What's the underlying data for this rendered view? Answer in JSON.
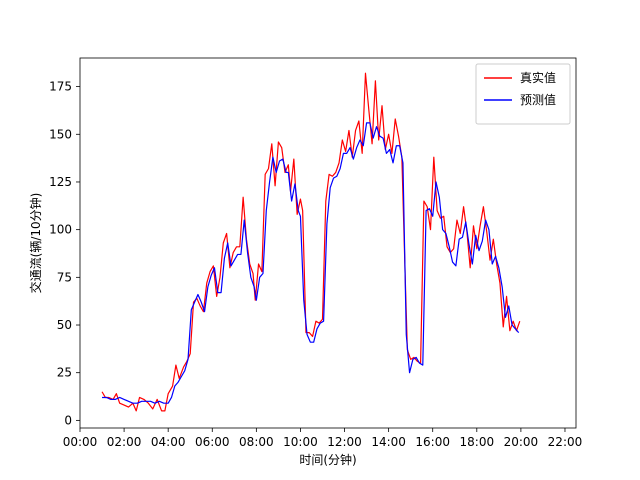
{
  "chart_data": {
    "type": "line",
    "title": "",
    "xlabel": "时间(分钟)",
    "ylabel": "交通流(辆/10分钟)",
    "xlim": [
      0,
      22.5
    ],
    "ylim": [
      -4,
      190
    ],
    "x_ticks": [
      0,
      2,
      4,
      6,
      8,
      10,
      12,
      14,
      16,
      18,
      20,
      22
    ],
    "x_tick_labels": [
      "00:00",
      "02:00",
      "04:00",
      "06:00",
      "08:00",
      "10:00",
      "12:00",
      "14:00",
      "16:00",
      "18:00",
      "20:00",
      "22:00"
    ],
    "y_ticks": [
      0,
      25,
      50,
      75,
      100,
      125,
      150,
      175
    ],
    "y_tick_labels": [
      "0",
      "25",
      "50",
      "75",
      "100",
      "125",
      "150",
      "175"
    ],
    "grid": false,
    "legend_position": "upper-right",
    "series": [
      {
        "name": "真实值",
        "color": "#ff0000",
        "points": [
          [
            1.0,
            15
          ],
          [
            1.15,
            12
          ],
          [
            1.3,
            12
          ],
          [
            1.5,
            11
          ],
          [
            1.65,
            14
          ],
          [
            1.8,
            9
          ],
          [
            2.0,
            8
          ],
          [
            2.2,
            7
          ],
          [
            2.4,
            9
          ],
          [
            2.55,
            5
          ],
          [
            2.7,
            12
          ],
          [
            2.9,
            11
          ],
          [
            3.1,
            9
          ],
          [
            3.3,
            6
          ],
          [
            3.5,
            11
          ],
          [
            3.7,
            5
          ],
          [
            3.85,
            5
          ],
          [
            4.0,
            14
          ],
          [
            4.2,
            18
          ],
          [
            4.35,
            29
          ],
          [
            4.5,
            22
          ],
          [
            4.7,
            28
          ],
          [
            4.85,
            31
          ],
          [
            5.0,
            35
          ],
          [
            5.15,
            62
          ],
          [
            5.3,
            64
          ],
          [
            5.45,
            60
          ],
          [
            5.6,
            57
          ],
          [
            5.75,
            72
          ],
          [
            5.9,
            78
          ],
          [
            6.05,
            81
          ],
          [
            6.2,
            65
          ],
          [
            6.35,
            75
          ],
          [
            6.5,
            93
          ],
          [
            6.65,
            98
          ],
          [
            6.8,
            80
          ],
          [
            6.95,
            88
          ],
          [
            7.1,
            91
          ],
          [
            7.25,
            91
          ],
          [
            7.4,
            117
          ],
          [
            7.55,
            95
          ],
          [
            7.7,
            82
          ],
          [
            7.85,
            77
          ],
          [
            7.95,
            63
          ],
          [
            8.1,
            82
          ],
          [
            8.25,
            78
          ],
          [
            8.4,
            129
          ],
          [
            8.55,
            132
          ],
          [
            8.7,
            145
          ],
          [
            8.85,
            123
          ],
          [
            9.0,
            146
          ],
          [
            9.15,
            143
          ],
          [
            9.3,
            130
          ],
          [
            9.45,
            134
          ],
          [
            9.55,
            120
          ],
          [
            9.7,
            137
          ],
          [
            9.85,
            108
          ],
          [
            10.0,
            116
          ],
          [
            10.1,
            110
          ],
          [
            10.25,
            46
          ],
          [
            10.4,
            46
          ],
          [
            10.55,
            44
          ],
          [
            10.7,
            52
          ],
          [
            10.85,
            51
          ],
          [
            11.0,
            53
          ],
          [
            11.15,
            115
          ],
          [
            11.3,
            129
          ],
          [
            11.45,
            128
          ],
          [
            11.6,
            130
          ],
          [
            11.75,
            135
          ],
          [
            11.9,
            147
          ],
          [
            12.05,
            141
          ],
          [
            12.2,
            152
          ],
          [
            12.35,
            138
          ],
          [
            12.5,
            152
          ],
          [
            12.65,
            157
          ],
          [
            12.8,
            140
          ],
          [
            12.95,
            182
          ],
          [
            13.1,
            163
          ],
          [
            13.25,
            145
          ],
          [
            13.4,
            178
          ],
          [
            13.55,
            147
          ],
          [
            13.7,
            165
          ],
          [
            13.85,
            142
          ],
          [
            14.0,
            150
          ],
          [
            14.15,
            140
          ],
          [
            14.3,
            158
          ],
          [
            14.45,
            149
          ],
          [
            14.6,
            138
          ],
          [
            14.75,
            76
          ],
          [
            14.85,
            37
          ],
          [
            15.0,
            32
          ],
          [
            15.15,
            33
          ],
          [
            15.3,
            31
          ],
          [
            15.45,
            30
          ],
          [
            15.6,
            115
          ],
          [
            15.75,
            112
          ],
          [
            15.9,
            100
          ],
          [
            16.05,
            138
          ],
          [
            16.2,
            110
          ],
          [
            16.35,
            106
          ],
          [
            16.5,
            107
          ],
          [
            16.65,
            91
          ],
          [
            16.8,
            88
          ],
          [
            16.95,
            90
          ],
          [
            17.1,
            105
          ],
          [
            17.25,
            98
          ],
          [
            17.4,
            112
          ],
          [
            17.55,
            99
          ],
          [
            17.7,
            80
          ],
          [
            17.85,
            102
          ],
          [
            18.0,
            90
          ],
          [
            18.15,
            102
          ],
          [
            18.3,
            112
          ],
          [
            18.45,
            99
          ],
          [
            18.6,
            84
          ],
          [
            18.75,
            95
          ],
          [
            18.9,
            82
          ],
          [
            19.05,
            72
          ],
          [
            19.2,
            49
          ],
          [
            19.35,
            65
          ],
          [
            19.5,
            47
          ],
          [
            19.65,
            52
          ],
          [
            19.8,
            47
          ],
          [
            19.95,
            52
          ]
        ]
      },
      {
        "name": "预测值",
        "color": "#0000ff",
        "points": [
          [
            1.0,
            12
          ],
          [
            1.2,
            12
          ],
          [
            1.4,
            11
          ],
          [
            1.6,
            11
          ],
          [
            1.8,
            12
          ],
          [
            2.0,
            11
          ],
          [
            2.2,
            10
          ],
          [
            2.4,
            9
          ],
          [
            2.6,
            9
          ],
          [
            2.8,
            10
          ],
          [
            3.0,
            10
          ],
          [
            3.2,
            10
          ],
          [
            3.4,
            9
          ],
          [
            3.6,
            10
          ],
          [
            3.8,
            9
          ],
          [
            4.0,
            9
          ],
          [
            4.15,
            12
          ],
          [
            4.3,
            18
          ],
          [
            4.45,
            20
          ],
          [
            4.6,
            23
          ],
          [
            4.75,
            26
          ],
          [
            4.9,
            32
          ],
          [
            5.05,
            58
          ],
          [
            5.2,
            62
          ],
          [
            5.35,
            66
          ],
          [
            5.5,
            62
          ],
          [
            5.65,
            57
          ],
          [
            5.8,
            70
          ],
          [
            5.95,
            76
          ],
          [
            6.1,
            80
          ],
          [
            6.25,
            67
          ],
          [
            6.4,
            67
          ],
          [
            6.55,
            85
          ],
          [
            6.7,
            93
          ],
          [
            6.85,
            81
          ],
          [
            7.0,
            84
          ],
          [
            7.15,
            87
          ],
          [
            7.3,
            87
          ],
          [
            7.45,
            105
          ],
          [
            7.6,
            88
          ],
          [
            7.75,
            75
          ],
          [
            7.9,
            70
          ],
          [
            8.0,
            63
          ],
          [
            8.15,
            75
          ],
          [
            8.3,
            77
          ],
          [
            8.45,
            110
          ],
          [
            8.6,
            125
          ],
          [
            8.75,
            138
          ],
          [
            8.9,
            130
          ],
          [
            9.05,
            136
          ],
          [
            9.2,
            137
          ],
          [
            9.35,
            130
          ],
          [
            9.45,
            130
          ],
          [
            9.6,
            115
          ],
          [
            9.75,
            124
          ],
          [
            9.9,
            110
          ],
          [
            10.0,
            107
          ],
          [
            10.15,
            63
          ],
          [
            10.3,
            45
          ],
          [
            10.45,
            41
          ],
          [
            10.6,
            41
          ],
          [
            10.75,
            48
          ],
          [
            10.9,
            51
          ],
          [
            11.05,
            52
          ],
          [
            11.2,
            103
          ],
          [
            11.35,
            122
          ],
          [
            11.5,
            127
          ],
          [
            11.65,
            128
          ],
          [
            11.8,
            132
          ],
          [
            11.95,
            140
          ],
          [
            12.1,
            140
          ],
          [
            12.25,
            143
          ],
          [
            12.4,
            137
          ],
          [
            12.55,
            143
          ],
          [
            12.7,
            147
          ],
          [
            12.85,
            144
          ],
          [
            13.0,
            156
          ],
          [
            13.15,
            156
          ],
          [
            13.3,
            148
          ],
          [
            13.45,
            154
          ],
          [
            13.6,
            149
          ],
          [
            13.75,
            148
          ],
          [
            13.9,
            140
          ],
          [
            14.05,
            142
          ],
          [
            14.2,
            135
          ],
          [
            14.35,
            144
          ],
          [
            14.5,
            144
          ],
          [
            14.65,
            135
          ],
          [
            14.8,
            45
          ],
          [
            14.95,
            25
          ],
          [
            15.1,
            32
          ],
          [
            15.25,
            33
          ],
          [
            15.4,
            30
          ],
          [
            15.55,
            29
          ],
          [
            15.7,
            110
          ],
          [
            15.85,
            111
          ],
          [
            16.0,
            107
          ],
          [
            16.15,
            125
          ],
          [
            16.3,
            117
          ],
          [
            16.45,
            100
          ],
          [
            16.6,
            98
          ],
          [
            16.75,
            91
          ],
          [
            16.9,
            83
          ],
          [
            17.05,
            81
          ],
          [
            17.2,
            95
          ],
          [
            17.35,
            96
          ],
          [
            17.5,
            104
          ],
          [
            17.65,
            92
          ],
          [
            17.8,
            82
          ],
          [
            17.95,
            97
          ],
          [
            18.1,
            89
          ],
          [
            18.25,
            94
          ],
          [
            18.4,
            105
          ],
          [
            18.55,
            100
          ],
          [
            18.7,
            82
          ],
          [
            18.85,
            86
          ],
          [
            19.0,
            80
          ],
          [
            19.15,
            70
          ],
          [
            19.3,
            54
          ],
          [
            19.45,
            60
          ],
          [
            19.6,
            50
          ],
          [
            19.75,
            48
          ],
          [
            19.9,
            46
          ]
        ]
      }
    ]
  }
}
